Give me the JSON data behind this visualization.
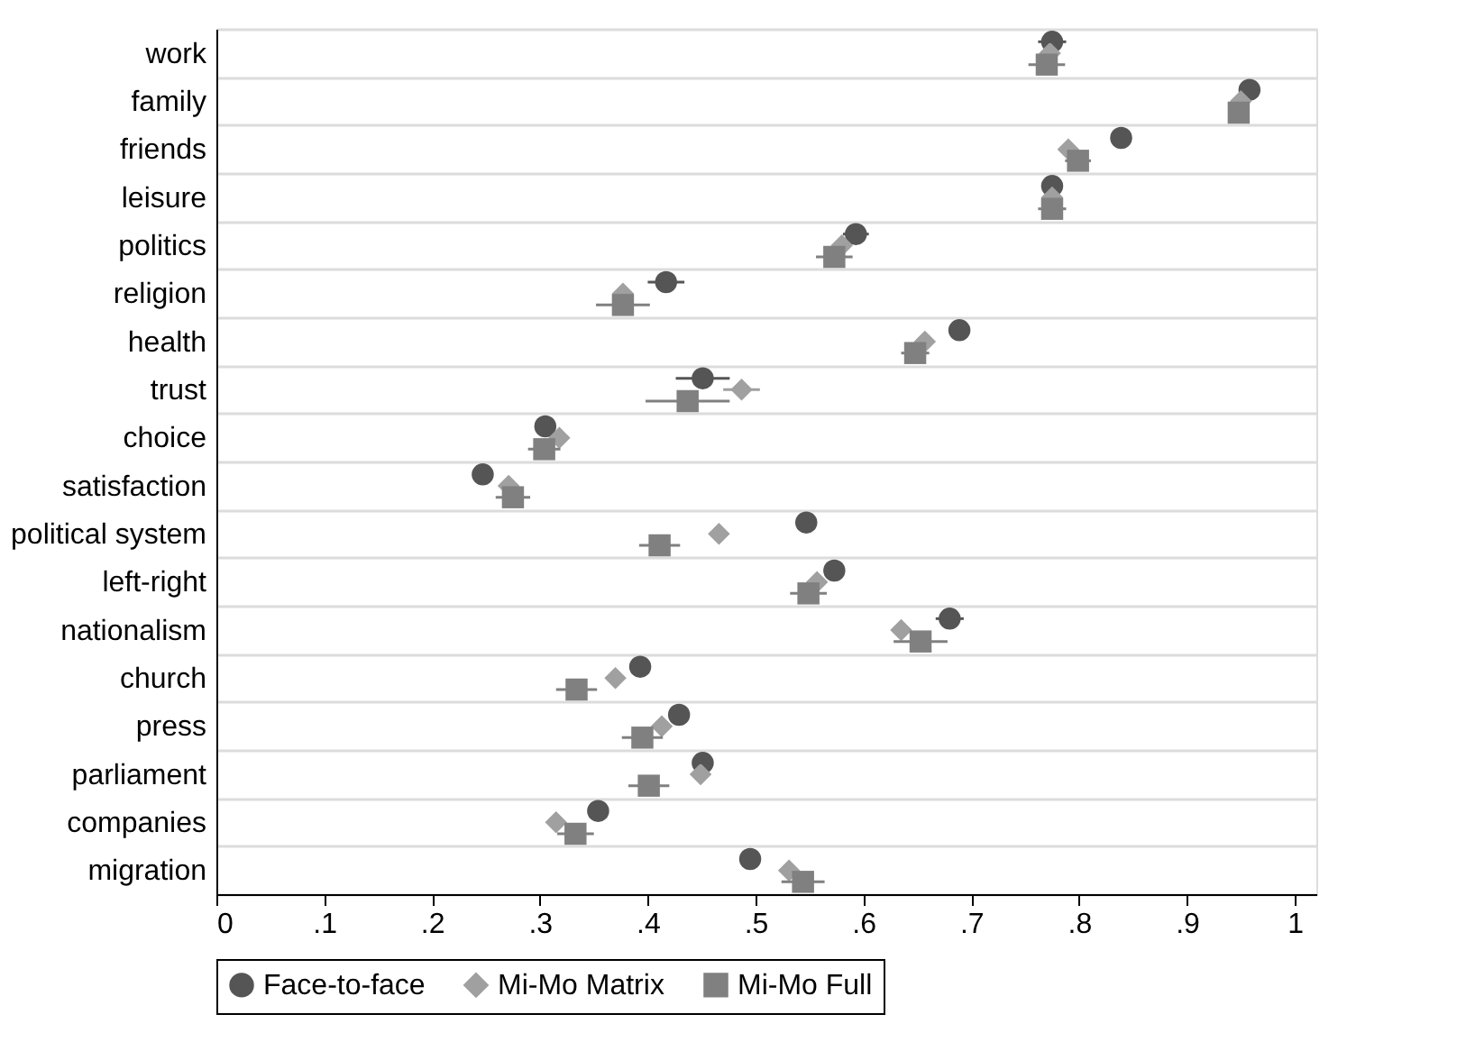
{
  "chart_data": {
    "type": "scatter",
    "orientation": "horizontal",
    "categories": [
      "work",
      "family",
      "friends",
      "leisure",
      "politics",
      "religion",
      "health",
      "trust",
      "choice",
      "satisfaction",
      "political system",
      "left-right",
      "nationalism",
      "church",
      "press",
      "parliament",
      "companies",
      "migration"
    ],
    "series": [
      {
        "name": "Face-to-face",
        "color": "#555555",
        "marker": "circle",
        "values": [
          0.775,
          0.958,
          0.839,
          0.775,
          0.593,
          0.417,
          0.689,
          0.451,
          0.305,
          0.247,
          0.547,
          0.573,
          0.68,
          0.393,
          0.429,
          0.451,
          0.354,
          0.495
        ],
        "errors": [
          0.013,
          null,
          null,
          null,
          0.012,
          0.017,
          null,
          0.025,
          null,
          null,
          0.008,
          null,
          0.013,
          0.01,
          0.008,
          0.008,
          0.008,
          null
        ]
      },
      {
        "name": "Mi-Mo Matrix",
        "color": "#a0a0a0",
        "marker": "diamond",
        "values": [
          0.773,
          0.95,
          0.79,
          0.775,
          0.58,
          0.377,
          0.657,
          0.487,
          0.318,
          0.271,
          0.466,
          0.557,
          0.635,
          0.37,
          0.413,
          0.449,
          0.315,
          0.531
        ],
        "errors": [
          null,
          null,
          null,
          null,
          null,
          null,
          null,
          0.017,
          null,
          null,
          null,
          null,
          null,
          null,
          null,
          null,
          null,
          null
        ]
      },
      {
        "name": "Mi-Mo Full",
        "color": "#808080",
        "marker": "square",
        "values": [
          0.77,
          0.948,
          0.799,
          0.775,
          0.573,
          0.377,
          0.648,
          0.437,
          0.304,
          0.275,
          0.411,
          0.549,
          0.653,
          0.334,
          0.395,
          0.401,
          0.333,
          0.544
        ],
        "errors": [
          0.017,
          null,
          0.012,
          0.013,
          0.017,
          0.025,
          0.013,
          0.039,
          0.015,
          0.016,
          0.019,
          0.017,
          0.025,
          0.019,
          0.019,
          0.019,
          0.017,
          0.02
        ]
      }
    ],
    "xlim": [
      0,
      1.02
    ],
    "xticks": [
      {
        "value": 0,
        "label": "0"
      },
      {
        "value": 0.1,
        "label": ".1"
      },
      {
        "value": 0.2,
        "label": ".2"
      },
      {
        "value": 0.3,
        "label": ".3"
      },
      {
        "value": 0.4,
        "label": ".4"
      },
      {
        "value": 0.5,
        "label": ".5"
      },
      {
        "value": 0.6,
        "label": ".6"
      },
      {
        "value": 0.7,
        "label": ".7"
      },
      {
        "value": 0.8,
        "label": ".8"
      },
      {
        "value": 0.9,
        "label": ".9"
      },
      {
        "value": 1,
        "label": "1"
      }
    ],
    "grid": "y",
    "legend": "bottom"
  }
}
